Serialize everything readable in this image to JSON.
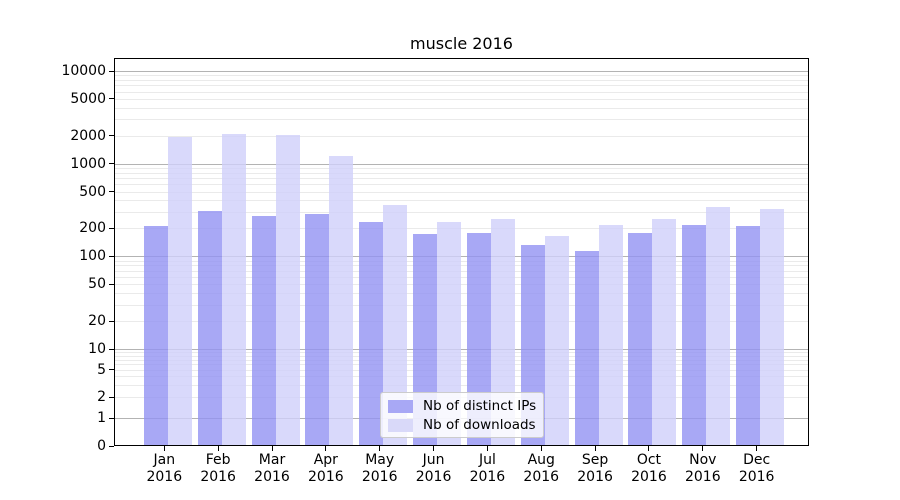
{
  "figure": {
    "title": "muscle 2016"
  },
  "chart_data": {
    "type": "bar",
    "title": "muscle 2016",
    "xlabel": "",
    "ylabel": "",
    "x_labels": [
      [
        "Jan",
        "2016"
      ],
      [
        "Feb",
        "2016"
      ],
      [
        "Mar",
        "2016"
      ],
      [
        "Apr",
        "2016"
      ],
      [
        "May",
        "2016"
      ],
      [
        "Jun",
        "2016"
      ],
      [
        "Jul",
        "2016"
      ],
      [
        "Aug",
        "2016"
      ],
      [
        "Sep",
        "2016"
      ],
      [
        "Oct",
        "2016"
      ],
      [
        "Nov",
        "2016"
      ],
      [
        "Dec",
        "2016"
      ]
    ],
    "series": [
      {
        "name": "Nb of distinct IPs",
        "values": [
          205,
          299,
          268,
          279,
          227,
          168,
          172,
          129,
          110,
          173,
          212,
          205
        ]
      },
      {
        "name": "Nb of downloads",
        "values": [
          1880,
          2050,
          1990,
          1190,
          349,
          230,
          245,
          163,
          214,
          248,
          335,
          316
        ]
      }
    ],
    "y_axis": {
      "scale": "symlog",
      "tick_values": [
        0,
        1,
        2,
        5,
        10,
        20,
        50,
        100,
        200,
        500,
        1000,
        2000,
        5000,
        10000
      ],
      "major_grid_values": [
        1,
        10,
        100,
        1000,
        10000
      ],
      "minor_grid": true,
      "ylim": [
        0,
        13700
      ]
    },
    "legend": {
      "position": "lower-center",
      "entries": [
        "Nb of distinct IPs",
        "Nb of downloads"
      ]
    },
    "colors": {
      "bar_ips": "rgba(146,146,243,0.8)",
      "bar_downloads": "rgba(208,208,250,0.8)",
      "legend_swatch_ips": "#a8a8f5",
      "legend_swatch_downloads": "#d9d9f9",
      "grid_major": "#b3b3b3",
      "grid_minor": "#eaeaea",
      "axis": "#000000"
    }
  }
}
